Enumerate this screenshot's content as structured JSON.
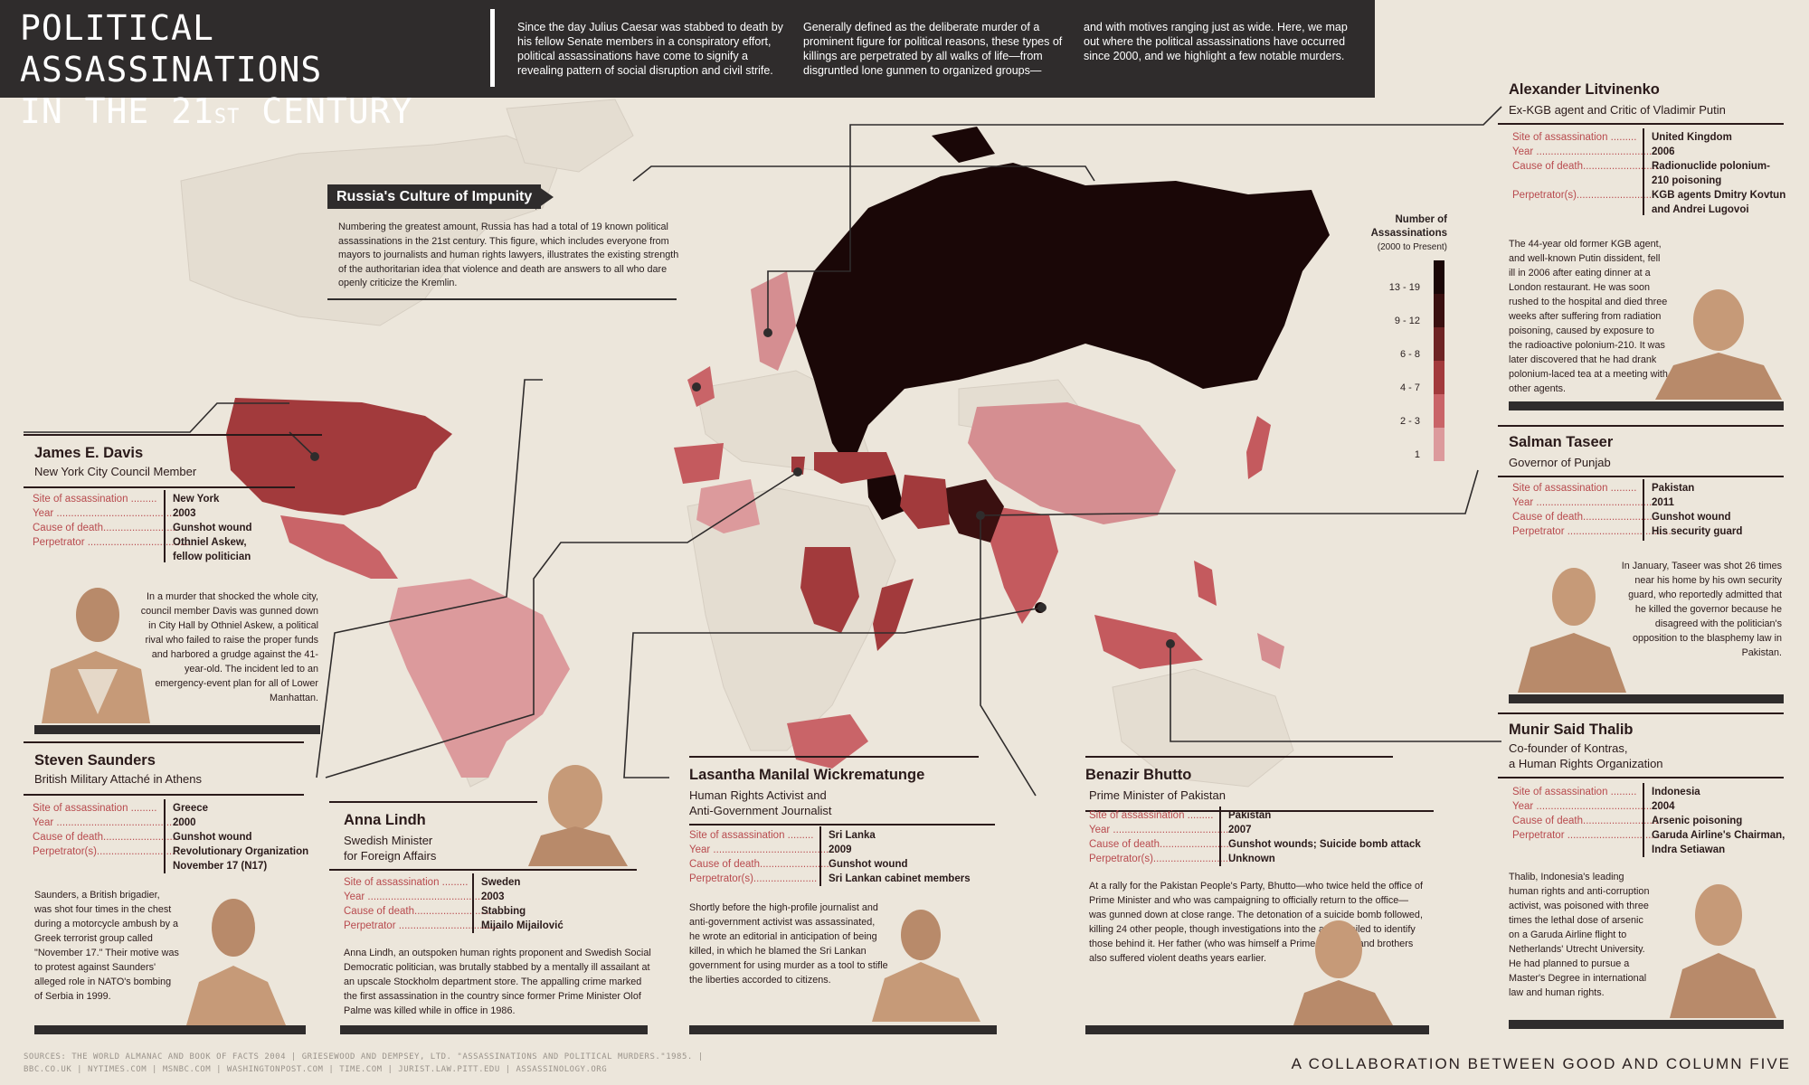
{
  "header": {
    "title_line1": "POLITICAL ASSASSINATIONS",
    "title_line2_pre": "IN THE 21",
    "title_line2_sup": "ST",
    "title_line2_post": " CENTURY",
    "intro_col1": "Since the day Julius Caesar was stabbed to death by his fellow Senate members in a conspiratory effort, political assassinations have come to signify a revealing pattern of social disruption and civil strife.",
    "intro_col2": "Generally defined as the deliberate murder of a prominent figure for political reasons, these types of killings are perpetrated by all walks of life—from disgruntled lone gunmen to organized groups—",
    "intro_col3": "and with motives ranging just as wide. Here, we map out where the political assassinations have occurred since 2000, and we highlight a few notable murders."
  },
  "legend": {
    "title": "Number of Assassinations",
    "subtitle": "(2000 to Present)",
    "bins": [
      {
        "label": "13 - 19",
        "color": "#1a0707"
      },
      {
        "label": "9 - 12",
        "color": "#3a1010"
      },
      {
        "label": "6 - 8",
        "color": "#6e2424"
      },
      {
        "label": "4 - 7",
        "color": "#a23a3c"
      },
      {
        "label": "2 - 3",
        "color": "#c96468"
      },
      {
        "label": "1",
        "color": "#dc9a9c"
      }
    ]
  },
  "colors": {
    "dark": "#2f2c2c",
    "accent": "#b84a4e",
    "paper": "#ece6db",
    "land": "#e8e2d8"
  },
  "russia": {
    "heading": "Russia's Culture of Impunity",
    "body": "Numbering the greatest amount, Russia has had a total of 19 known political assassinations in the 21st century. This figure, which includes everyone from mayors to journalists and human rights lawyers, illustrates the existing strength of the authoritarian idea that violence and death are answers to all who dare openly criticize the Kremlin."
  },
  "field_labels": {
    "site": "Site of assassination .........",
    "year": "Year ...........................................",
    "cause": "Cause of death..........................",
    "perp": "Perpetrator ....................................",
    "perps": "Perpetrator(s)...........................",
    "perp_s": "Perpetrator(s)......................"
  },
  "cards": {
    "davis": {
      "name": "James E. Davis",
      "role": "New York City Council Member",
      "site": "New York",
      "year": "2003",
      "cause": "Gunshot wound",
      "perp": "Othniel Askew, fellow politician",
      "story": "In a murder that shocked the whole city, council member Davis was gunned down in City Hall by Othniel Askew, a political rival who failed to raise the proper funds and harbored a grudge against the 41-year-old. The incident led to an emergency-event plan for all of Lower Manhattan."
    },
    "saunders": {
      "name": "Steven Saunders",
      "role": "British Military Attaché in Athens",
      "site": "Greece",
      "year": "2000",
      "cause": "Gunshot wound",
      "perp": "Revolutionary Organization November 17 (N17)",
      "story": "Saunders, a British brigadier, was shot four times in the chest during a motorcycle ambush by a Greek terrorist group called \"November 17.\" Their motive was to protest against Saunders' alleged role in NATO's bombing of Serbia in 1999."
    },
    "lindh": {
      "name": "Anna Lindh",
      "role1": "Swedish Minister",
      "role2": "for Foreign Affairs",
      "site": "Sweden",
      "year": "2003",
      "cause": "Stabbing",
      "perp": "Mijailo Mijailović",
      "story": "Anna Lindh, an outspoken human rights proponent and Swedish Social Democratic politician, was brutally stabbed by a mentally ill assailant at an upscale Stockholm department store. The appalling crime marked the first assassination in the country since former Prime Minister Olof Palme was killed while in office in 1986."
    },
    "lasantha": {
      "name": "Lasantha Manilal Wickrematunge",
      "role1": "Human Rights Activist and",
      "role2": "Anti-Government Journalist",
      "site": "Sri Lanka",
      "year": "2009",
      "cause": "Gunshot wound",
      "perp": "Sri Lankan cabinet members",
      "story": "Shortly before the high-profile journalist and anti-government activist was assassinated, he wrote an editorial in anticipation of being killed, in which he blamed the Sri Lankan government for using murder as a tool to stifle the liberties accorded to citizens."
    },
    "bhutto": {
      "name": "Benazir Bhutto",
      "role": "Prime Minister of Pakistan",
      "site": "Pakistan",
      "year": "2007",
      "cause": "Gunshot wounds; Suicide bomb attack",
      "perp": "Unknown",
      "story": "At a rally for the Pakistan People's Party, Bhutto—who twice held the office of Prime Minister and who was campaigning to officially return to the office—was gunned down at close range. The detonation of a suicide bomb followed, killing 24 other people, though investigations into the attack failed to identify those behind it. Her father (who was himself a Prime Minister) and brothers also suffered violent deaths years earlier."
    },
    "litvinenko": {
      "name": "Alexander Litvinenko",
      "role": "Ex-KGB agent and Critic of Vladimir Putin",
      "site": "United Kingdom",
      "year": "2006",
      "cause": "Radionuclide polonium-210 poisoning",
      "perp": "KGB agents Dmitry Kovtun and Andrei Lugovoi",
      "story": "The 44-year old former KGB agent, and well-known Putin dissident, fell ill in 2006 after eating dinner at a London restaurant. He was soon rushed to the hospital and died three weeks after suffering from radiation poisoning, caused by exposure to the radioactive polonium-210. It was later discovered that he had drank polonium-laced tea at a meeting with other agents."
    },
    "taseer": {
      "name": "Salman Taseer",
      "role": "Governor of Punjab",
      "site": "Pakistan",
      "year": "2011",
      "cause": "Gunshot wound",
      "perp": "His security guard",
      "story": "In January, Taseer was shot 26 times near his home by his own security guard, who reportedly admitted that he killed the governor because he disagreed with the politician's opposition to the blasphemy law in Pakistan."
    },
    "thalib": {
      "name": "Munir Said Thalib",
      "role1": "Co-founder of Kontras,",
      "role2": "a Human Rights Organization",
      "site": "Indonesia",
      "year": "2004",
      "cause": "Arsenic poisoning",
      "perp": "Garuda Airline's Chairman, Indra Setiawan",
      "story": "Thalib, Indonesia's leading human rights and anti-corruption activist, was poisoned with three times the lethal dose of arsenic on a Garuda Airline flight to Netherlands' Utrecht University. He had planned to pursue a Master's Degree in international law and human rights."
    }
  },
  "footer": {
    "sources": "SOURCES: THE WORLD ALMANAC AND BOOK OF FACTS 2004 | GRIESEWOOD AND DEMPSEY, LTD. \"ASSASSINATIONS AND POLITICAL MURDERS.\"1985. | BBC.CO.UK | NYTIMES.COM | MSNBC.COM | WASHINGTONPOST.COM | TIME.COM | JURIST.LAW.PITT.EDU | ASSASSINOLOGY.ORG",
    "collab": "A COLLABORATION BETWEEN GOOD AND COLUMN FIVE"
  }
}
